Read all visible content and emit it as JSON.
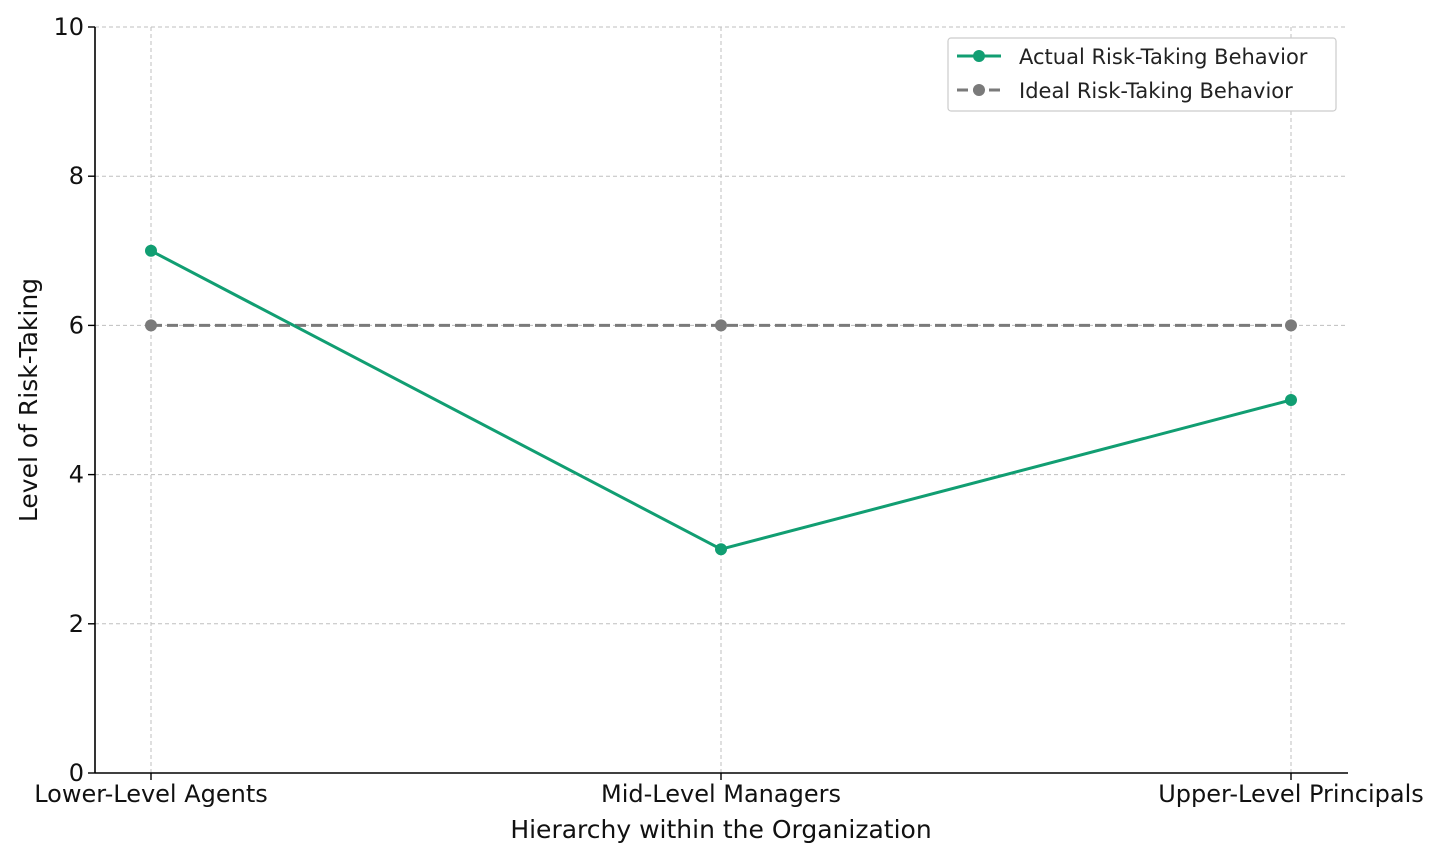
{
  "chart_data": {
    "type": "line",
    "categories": [
      "Lower-Level Agents",
      "Mid-Level Managers",
      "Upper-Level Principals"
    ],
    "series": [
      {
        "name": "Actual Risk-Taking Behavior",
        "values": [
          7,
          3,
          5
        ],
        "color": "#119e72",
        "style": "solid",
        "marker": "circle"
      },
      {
        "name": "Ideal Risk-Taking Behavior",
        "values": [
          6,
          6,
          6
        ],
        "color": "#7a7a7a",
        "style": "dashed",
        "marker": "circle"
      }
    ],
    "title": "",
    "xlabel": "Hierarchy within the Organization",
    "ylabel": "Level of Risk-Taking",
    "ylim": [
      0,
      10
    ],
    "yticks": [
      "0",
      "2",
      "4",
      "6",
      "8",
      "10"
    ],
    "ytick_values": [
      0,
      2,
      4,
      6,
      8,
      10
    ],
    "grid": true,
    "legend": "top-right"
  }
}
